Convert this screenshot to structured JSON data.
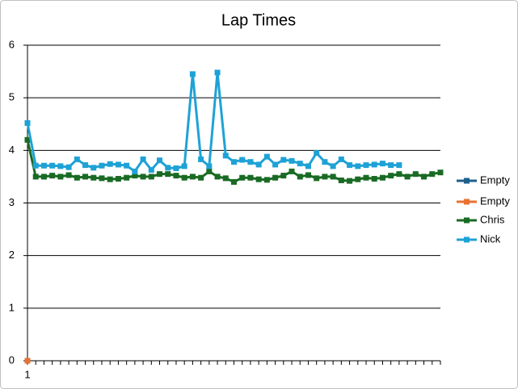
{
  "chart_data": {
    "type": "line",
    "title": "Lap Times",
    "categories": [
      "1",
      null,
      null,
      null,
      null,
      null,
      null,
      null,
      null,
      null,
      null,
      null,
      null,
      null,
      null,
      null,
      null,
      null,
      null,
      null,
      null,
      null,
      null,
      null,
      null,
      null,
      null,
      null,
      null,
      null,
      null,
      null,
      null,
      null,
      null,
      null,
      null,
      null,
      null,
      null,
      null,
      null,
      null,
      null,
      null,
      null,
      null,
      null,
      null,
      null,
      null
    ],
    "series": [
      {
        "name": "Empty",
        "color": "#1f5f8b",
        "values": [
          null,
          null,
          null,
          null,
          null,
          null,
          null,
          null,
          null,
          null,
          null,
          null,
          null,
          null,
          null,
          null,
          null,
          null,
          null,
          null,
          null,
          null,
          null,
          null,
          null,
          null,
          null,
          null,
          null,
          null,
          null,
          null,
          null,
          null,
          null,
          null,
          null,
          null,
          null,
          null,
          null,
          null,
          null,
          null,
          null,
          null,
          null,
          null,
          null,
          null,
          null
        ]
      },
      {
        "name": "Empty",
        "color": "#e97132",
        "values": [
          0,
          null,
          null,
          null,
          null,
          null,
          null,
          null,
          null,
          null,
          null,
          null,
          null,
          null,
          null,
          null,
          null,
          null,
          null,
          null,
          null,
          null,
          null,
          null,
          null,
          null,
          null,
          null,
          null,
          null,
          null,
          null,
          null,
          null,
          null,
          null,
          null,
          null,
          null,
          null,
          null,
          null,
          null,
          null,
          null,
          null,
          null,
          null,
          null,
          null,
          null
        ]
      },
      {
        "name": "Chris",
        "color": "#196b24",
        "values": [
          4.2,
          3.5,
          3.5,
          3.52,
          3.5,
          3.53,
          3.48,
          3.5,
          3.48,
          3.47,
          3.45,
          3.46,
          3.48,
          3.52,
          3.5,
          3.5,
          3.55,
          3.55,
          3.52,
          3.48,
          3.5,
          3.48,
          3.6,
          3.5,
          3.47,
          3.4,
          3.48,
          3.48,
          3.45,
          3.44,
          3.48,
          3.52,
          3.6,
          3.5,
          3.53,
          3.47,
          3.5,
          3.5,
          3.43,
          3.42,
          3.45,
          3.48,
          3.46,
          3.48,
          3.52,
          3.55,
          3.5,
          3.55,
          3.5,
          3.55,
          3.58
        ]
      },
      {
        "name": "Nick",
        "color": "#1ea2d6",
        "values": [
          4.52,
          3.71,
          3.71,
          3.71,
          3.7,
          3.68,
          3.83,
          3.72,
          3.67,
          3.71,
          3.74,
          3.73,
          3.71,
          3.6,
          3.83,
          3.63,
          3.81,
          3.67,
          3.66,
          3.7,
          5.45,
          3.83,
          3.7,
          5.48,
          3.9,
          3.78,
          3.82,
          3.78,
          3.73,
          3.88,
          3.73,
          3.82,
          3.8,
          3.75,
          3.7,
          3.95,
          3.78,
          3.7,
          3.83,
          3.72,
          3.7,
          3.72,
          3.73,
          3.75,
          3.72,
          3.72,
          null,
          null,
          null,
          null,
          null
        ]
      }
    ],
    "ylim": [
      0,
      6
    ],
    "yticks": [
      0,
      1,
      2,
      3,
      4,
      5,
      6
    ],
    "grid": true,
    "legend": "right"
  }
}
